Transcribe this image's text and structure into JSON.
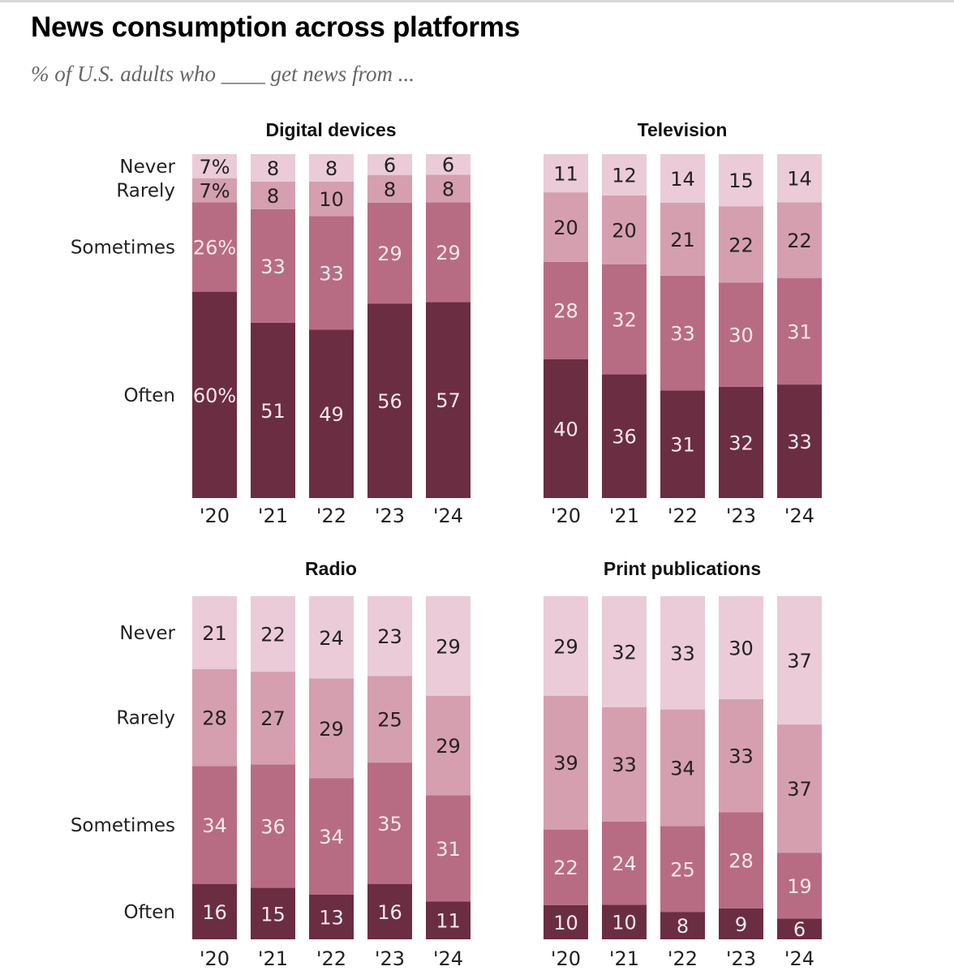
{
  "title": "News consumption across platforms",
  "subtitle": "% of U.S. adults who ____ get news from ...",
  "colors": {
    "Often": "#6b2d41",
    "Sometimes": "#b86c83",
    "Rarely": "#d59fb0",
    "Never": "#ebcbd8",
    "label_dark": "#222222",
    "label_light": "#f7e9ee"
  },
  "chart_data": [
    {
      "type": "bar",
      "stacked": true,
      "title": "Digital devices",
      "categories": [
        "'20",
        "'21",
        "'22",
        "'23",
        "'24"
      ],
      "series": [
        {
          "name": "Often",
          "values": [
            60,
            51,
            49,
            56,
            57
          ]
        },
        {
          "name": "Sometimes",
          "values": [
            26,
            33,
            33,
            29,
            29
          ]
        },
        {
          "name": "Rarely",
          "values": [
            7,
            8,
            10,
            8,
            8
          ]
        },
        {
          "name": "Never",
          "values": [
            7,
            8,
            8,
            6,
            6
          ]
        }
      ],
      "value_labels": [
        [
          "60%",
          "51",
          "49",
          "56",
          "57"
        ],
        [
          "26%",
          "33",
          "33",
          "29",
          "29"
        ],
        [
          "7%",
          "8",
          "10",
          "8",
          "8"
        ],
        [
          "7%",
          "8",
          "8",
          "6",
          "6"
        ]
      ],
      "row_labels": [
        "Often",
        "Sometimes",
        "Rarely",
        "Never"
      ],
      "ylim": [
        0,
        100
      ]
    },
    {
      "type": "bar",
      "stacked": true,
      "title": "Television",
      "categories": [
        "'20",
        "'21",
        "'22",
        "'23",
        "'24"
      ],
      "series": [
        {
          "name": "Often",
          "values": [
            40,
            36,
            31,
            32,
            33
          ]
        },
        {
          "name": "Sometimes",
          "values": [
            28,
            32,
            33,
            30,
            31
          ]
        },
        {
          "name": "Rarely",
          "values": [
            20,
            20,
            21,
            22,
            22
          ]
        },
        {
          "name": "Never",
          "values": [
            11,
            12,
            14,
            15,
            14
          ]
        }
      ],
      "value_labels": [
        [
          "40",
          "36",
          "31",
          "32",
          "33"
        ],
        [
          "28",
          "32",
          "33",
          "30",
          "31"
        ],
        [
          "20",
          "20",
          "21",
          "22",
          "22"
        ],
        [
          "11",
          "12",
          "14",
          "15",
          "14"
        ]
      ],
      "row_labels": [],
      "ylim": [
        0,
        100
      ]
    },
    {
      "type": "bar",
      "stacked": true,
      "title": "Radio",
      "categories": [
        "'20",
        "'21",
        "'22",
        "'23",
        "'24"
      ],
      "series": [
        {
          "name": "Often",
          "values": [
            16,
            15,
            13,
            16,
            11
          ]
        },
        {
          "name": "Sometimes",
          "values": [
            34,
            36,
            34,
            35,
            31
          ]
        },
        {
          "name": "Rarely",
          "values": [
            28,
            27,
            29,
            25,
            29
          ]
        },
        {
          "name": "Never",
          "values": [
            21,
            22,
            24,
            23,
            29
          ]
        }
      ],
      "value_labels": [
        [
          "16",
          "15",
          "13",
          "16",
          "11"
        ],
        [
          "34",
          "36",
          "34",
          "35",
          "31"
        ],
        [
          "28",
          "27",
          "29",
          "25",
          "29"
        ],
        [
          "21",
          "22",
          "24",
          "23",
          "29"
        ]
      ],
      "row_labels": [
        "Often",
        "Sometimes",
        "Rarely",
        "Never"
      ],
      "ylim": [
        0,
        100
      ]
    },
    {
      "type": "bar",
      "stacked": true,
      "title": "Print publications",
      "categories": [
        "'20",
        "'21",
        "'22",
        "'23",
        "'24"
      ],
      "series": [
        {
          "name": "Often",
          "values": [
            10,
            10,
            8,
            9,
            6
          ]
        },
        {
          "name": "Sometimes",
          "values": [
            22,
            24,
            25,
            28,
            19
          ]
        },
        {
          "name": "Rarely",
          "values": [
            39,
            33,
            34,
            33,
            37
          ]
        },
        {
          "name": "Never",
          "values": [
            29,
            32,
            33,
            30,
            37
          ]
        }
      ],
      "value_labels": [
        [
          "10",
          "10",
          "8",
          "9",
          "6"
        ],
        [
          "22",
          "24",
          "25",
          "28",
          "19"
        ],
        [
          "39",
          "33",
          "34",
          "33",
          "37"
        ],
        [
          "29",
          "32",
          "33",
          "30",
          "37"
        ]
      ],
      "row_labels": [],
      "ylim": [
        0,
        100
      ]
    }
  ]
}
